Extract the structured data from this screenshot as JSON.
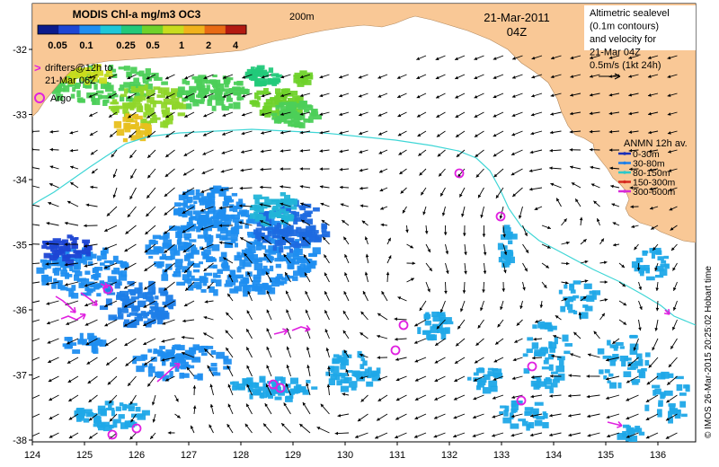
{
  "title": {
    "product": "MODIS Chl-a mg/m3 OC3",
    "date": "21-Mar-2011",
    "hour": "04Z"
  },
  "colorbar": {
    "ticks": [
      "0.05",
      "0.1",
      "0.25",
      "0.5",
      "1",
      "2",
      "4"
    ],
    "colors": [
      "#0b1b8c",
      "#1d46d4",
      "#1f8ef0",
      "#1ec7d8",
      "#22c97a",
      "#6fd22b",
      "#c9dc1e",
      "#f0b21d",
      "#e86a14",
      "#b31a12"
    ]
  },
  "isobath_label": "200m",
  "legend": {
    "drifters": "drifters@12h to",
    "drifters_to": "21-Mar 06Z",
    "drifter_symbol": ">",
    "argo": "Argo"
  },
  "altimetry_note": [
    "Altimetric sealevel",
    "(0.1m contours)",
    "and velocity for",
    "21-Mar 04Z",
    "0.5m/s (1kt 24h)"
  ],
  "anmn_legend": {
    "title": "ANMN 12h av.",
    "items": [
      {
        "label": "0-30m",
        "color": "#1a2fb8"
      },
      {
        "label": "30-80m",
        "color": "#1f7fe8"
      },
      {
        "label": "80-150m",
        "color": "#2ec9c9"
      },
      {
        "label": "150-300m",
        "color": "#d62a1f"
      },
      {
        "label": "300-600m",
        "color": "#d62ad6"
      }
    ]
  },
  "credit": "© IMOS 26-Mar-2015 20:25:02 Hobart time",
  "axes": {
    "x_ticks": [
      "124",
      "125",
      "126",
      "127",
      "128",
      "129",
      "130",
      "131",
      "132",
      "133",
      "134",
      "135",
      "136"
    ],
    "y_ticks": [
      "-32",
      "-33",
      "-34",
      "-35",
      "-36",
      "-37",
      "-38"
    ]
  },
  "colors": {
    "land": "#f9c896",
    "sea": "#ffffff",
    "isobath": "#3fd6d6",
    "argo": "#e020e0",
    "drifter": "#e020e0",
    "arrow": "#000000"
  }
}
